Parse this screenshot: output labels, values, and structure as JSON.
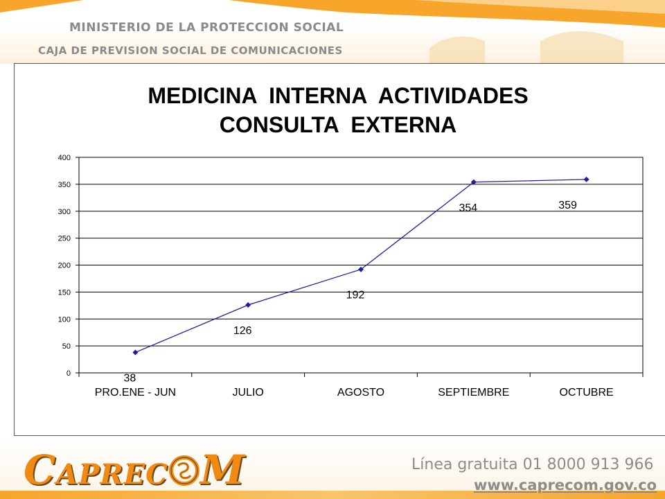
{
  "header": {
    "ministry": "MINISTERIO DE LA PROTECCION SOCIAL",
    "caja": "CAJA DE PREVISION SOCIAL DE COMUNICACIONES"
  },
  "footer": {
    "logo_first": "C",
    "logo_mid": "APREC",
    "logo_last": "M",
    "hotline": "Línea gratuita 01 8000 913 966",
    "web": "www.caprecom.gov.co"
  },
  "colors": {
    "accent": "#f7a52b",
    "line": "#1f1f9e",
    "logo": "#f08a12"
  },
  "chart_data": {
    "type": "line",
    "title_lines": [
      "MEDICINA  INTERNA  ACTIVIDADES",
      "CONSULTA  EXTERNA"
    ],
    "categories": [
      "PRO.ENE - JUN",
      "JULIO",
      "AGOSTO",
      "SEPTIEMBRE",
      "OCTUBRE"
    ],
    "values": [
      38,
      126,
      192,
      354,
      359
    ],
    "data_labels": [
      "38",
      "126",
      "192",
      "354",
      "359"
    ],
    "ylim": [
      0,
      400
    ],
    "yticks": [
      "0",
      "50",
      "100",
      "150",
      "200",
      "250",
      "300",
      "350",
      "400"
    ],
    "grid": true,
    "legend": "none"
  }
}
